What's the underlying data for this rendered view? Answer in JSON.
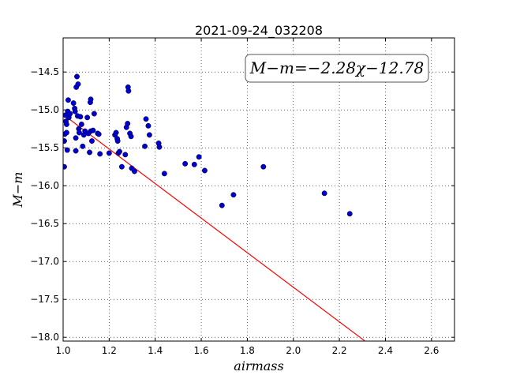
{
  "chart_data": {
    "type": "scatter",
    "title": "2021-09-24_032208",
    "xlabel": "airmass",
    "ylabel": "M−m",
    "xlim": [
      1.0,
      2.7
    ],
    "ylim": [
      -18.05,
      -14.05
    ],
    "grid": true,
    "xticks": [
      1.0,
      1.2,
      1.4,
      1.6,
      1.8,
      2.0,
      2.2,
      2.4,
      2.6
    ],
    "xtick_labels": [
      "1.0",
      "1.2",
      "1.4",
      "1.6",
      "1.8",
      "2.0",
      "2.2",
      "2.4",
      "2.6"
    ],
    "yticks": [
      -14.5,
      -15.0,
      -15.5,
      -16.0,
      -16.5,
      -17.0,
      -17.5,
      -18.0
    ],
    "ytick_labels": [
      "−14.5",
      "−15.0",
      "−15.5",
      "−16.0",
      "−16.5",
      "−17.0",
      "−17.5",
      "−18.0"
    ],
    "annotation": "M−m=−2.28χ−12.78",
    "fit_line": {
      "slope": -2.28,
      "intercept": -12.78,
      "x_range": [
        1.0,
        2.31
      ],
      "color": "#ff0000"
    },
    "point_color": "#0000cc",
    "points": [
      {
        "x": 1.005,
        "y": -15.75
      },
      {
        "x": 1.005,
        "y": -15.41
      },
      {
        "x": 1.007,
        "y": -15.32
      },
      {
        "x": 1.01,
        "y": -15.07
      },
      {
        "x": 1.012,
        "y": -15.15
      },
      {
        "x": 1.015,
        "y": -15.19
      },
      {
        "x": 1.015,
        "y": -15.3
      },
      {
        "x": 1.018,
        "y": -15.53
      },
      {
        "x": 1.02,
        "y": -15.02
      },
      {
        "x": 1.022,
        "y": -14.87
      },
      {
        "x": 1.025,
        "y": -15.1
      },
      {
        "x": 1.03,
        "y": -15.05
      },
      {
        "x": 1.045,
        "y": -14.91
      },
      {
        "x": 1.05,
        "y": -14.98
      },
      {
        "x": 1.052,
        "y": -15.02
      },
      {
        "x": 1.055,
        "y": -15.54
      },
      {
        "x": 1.055,
        "y": -15.37
      },
      {
        "x": 1.057,
        "y": -14.7
      },
      {
        "x": 1.06,
        "y": -14.56
      },
      {
        "x": 1.063,
        "y": -15.08
      },
      {
        "x": 1.065,
        "y": -14.66
      },
      {
        "x": 1.068,
        "y": -15.25
      },
      {
        "x": 1.07,
        "y": -15.3
      },
      {
        "x": 1.075,
        "y": -15.09
      },
      {
        "x": 1.08,
        "y": -15.19
      },
      {
        "x": 1.085,
        "y": -15.48
      },
      {
        "x": 1.09,
        "y": -15.33
      },
      {
        "x": 1.095,
        "y": -15.28
      },
      {
        "x": 1.105,
        "y": -15.1
      },
      {
        "x": 1.11,
        "y": -15.31
      },
      {
        "x": 1.115,
        "y": -15.56
      },
      {
        "x": 1.118,
        "y": -14.9
      },
      {
        "x": 1.12,
        "y": -14.86
      },
      {
        "x": 1.12,
        "y": -15.28
      },
      {
        "x": 1.125,
        "y": -15.41
      },
      {
        "x": 1.13,
        "y": -15.27
      },
      {
        "x": 1.135,
        "y": -15.05
      },
      {
        "x": 1.15,
        "y": -15.31
      },
      {
        "x": 1.155,
        "y": -15.32
      },
      {
        "x": 1.16,
        "y": -15.58
      },
      {
        "x": 1.2,
        "y": -15.57
      },
      {
        "x": 1.225,
        "y": -15.33
      },
      {
        "x": 1.23,
        "y": -15.3
      },
      {
        "x": 1.235,
        "y": -15.38
      },
      {
        "x": 1.237,
        "y": -15.41
      },
      {
        "x": 1.24,
        "y": -15.57
      },
      {
        "x": 1.245,
        "y": -15.55
      },
      {
        "x": 1.255,
        "y": -15.75
      },
      {
        "x": 1.27,
        "y": -15.59
      },
      {
        "x": 1.275,
        "y": -15.23
      },
      {
        "x": 1.28,
        "y": -15.18
      },
      {
        "x": 1.282,
        "y": -14.7
      },
      {
        "x": 1.284,
        "y": -14.75
      },
      {
        "x": 1.29,
        "y": -15.31
      },
      {
        "x": 1.295,
        "y": -15.35
      },
      {
        "x": 1.298,
        "y": -15.77
      },
      {
        "x": 1.31,
        "y": -15.81
      },
      {
        "x": 1.355,
        "y": -15.48
      },
      {
        "x": 1.36,
        "y": -15.12
      },
      {
        "x": 1.37,
        "y": -15.21
      },
      {
        "x": 1.375,
        "y": -15.33
      },
      {
        "x": 1.415,
        "y": -15.44
      },
      {
        "x": 1.418,
        "y": -15.49
      },
      {
        "x": 1.44,
        "y": -15.84
      },
      {
        "x": 1.53,
        "y": -15.71
      },
      {
        "x": 1.57,
        "y": -15.72
      },
      {
        "x": 1.59,
        "y": -15.62
      },
      {
        "x": 1.615,
        "y": -15.8
      },
      {
        "x": 1.69,
        "y": -16.26
      },
      {
        "x": 1.74,
        "y": -16.12
      },
      {
        "x": 1.87,
        "y": -15.75
      },
      {
        "x": 2.135,
        "y": -16.1
      },
      {
        "x": 2.245,
        "y": -16.37
      }
    ]
  }
}
